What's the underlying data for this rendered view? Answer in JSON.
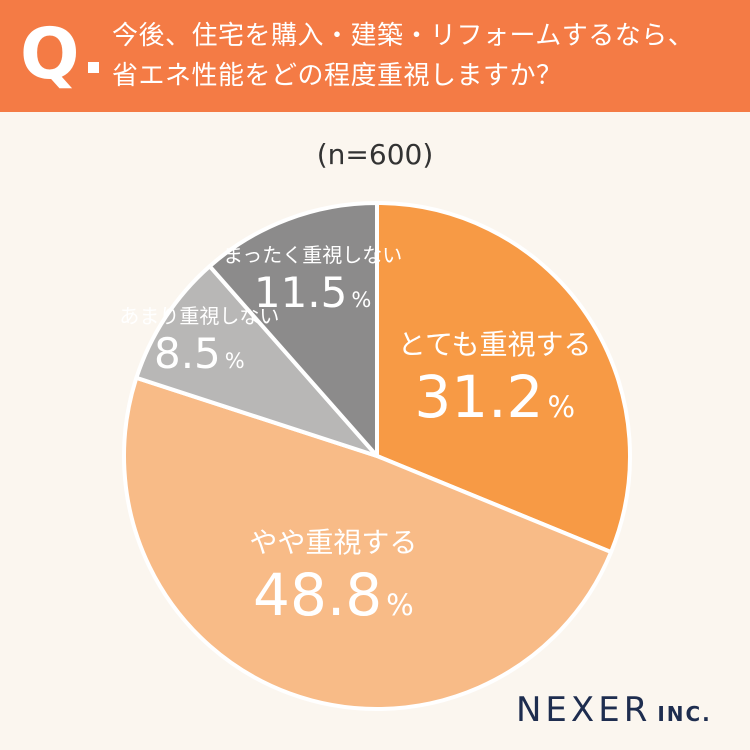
{
  "header": {
    "q_letter": "Q",
    "question_line1": "今後、住宅を購入・建築・リフォームするなら、",
    "question_line2": "省エネ性能をどの程度重視しますか？"
  },
  "colors": {
    "header_bg": "#f47b45",
    "background": "#fbf6ef",
    "slice_colors": [
      "#f79a45",
      "#f8bb87",
      "#b8b7b6",
      "#8c8b8b"
    ]
  },
  "chart_data": {
    "type": "pie",
    "subtitle": "(n=600)",
    "start_angle_deg": 0,
    "direction": "clockwise",
    "slices": [
      {
        "label": "とても重視する",
        "value": 31.2,
        "value_text": "31.2",
        "unit": "%"
      },
      {
        "label": "やや重視する",
        "value": 48.8,
        "value_text": "48.8",
        "unit": "%"
      },
      {
        "label": "あまり重視しない",
        "value": 8.5,
        "value_text": "8.5",
        "unit": "%"
      },
      {
        "label": "まったく重視しない",
        "value": 11.5,
        "value_text": "11.5",
        "unit": "%"
      }
    ]
  },
  "logo": {
    "brand": "NEXER",
    "suffix": "INC."
  }
}
